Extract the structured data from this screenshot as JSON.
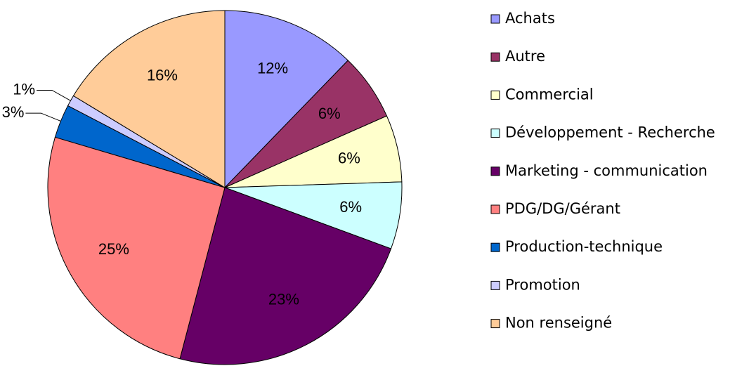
{
  "chart_data": {
    "type": "pie",
    "categories": [
      "Achats",
      "Autre",
      "Commercial",
      "Développement - Recherche",
      "Marketing - communication",
      "PDG/DG/Gérant",
      "Production-technique",
      "Promotion",
      "Non renseigné"
    ],
    "values": [
      12,
      6,
      6,
      6,
      23,
      25,
      3,
      1,
      16
    ],
    "value_labels": [
      "12%",
      "6%",
      "6%",
      "6%",
      "23%",
      "25%",
      "3%",
      "1%",
      "16%"
    ],
    "colors": [
      "#9999ff",
      "#993366",
      "#ffffcc",
      "#ccffff",
      "#660066",
      "#ff8080",
      "#0066cc",
      "#ccccff",
      "#ffcc99"
    ],
    "legend": "right"
  }
}
